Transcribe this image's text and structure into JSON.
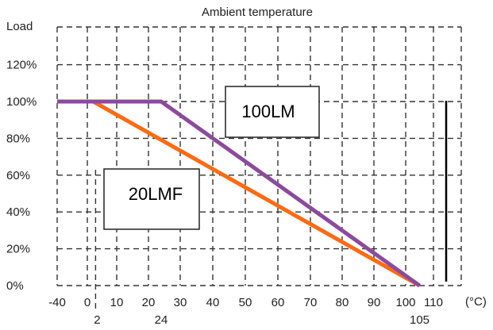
{
  "chart_data": {
    "type": "line",
    "title": "Ambient temperature",
    "ylabel": "Load",
    "xunit": "(°C)",
    "grid": true,
    "xlim": [
      -40,
      115
    ],
    "ylim": [
      0,
      140
    ],
    "x_ticks": [
      -40,
      0,
      10,
      20,
      30,
      40,
      50,
      60,
      70,
      80,
      90,
      100,
      110
    ],
    "x_tick_labels": [
      "-40",
      "0",
      "10",
      "20",
      "30",
      "40",
      "50",
      "60",
      "70",
      "80",
      "90",
      "100",
      "110"
    ],
    "y_ticks": [
      0,
      20,
      40,
      60,
      80,
      100,
      120
    ],
    "y_tick_labels": [
      "0%",
      "20%",
      "40%",
      "60%",
      "80%",
      "100%",
      "120%"
    ],
    "extra_x_labels": [
      {
        "value": 2,
        "label": "2"
      },
      {
        "value": 24,
        "label": "24"
      },
      {
        "value": 105,
        "label": "105"
      }
    ],
    "series": [
      {
        "name": "20LMF",
        "color": "#ff6a13",
        "x": [
          -40,
          2,
          105
        ],
        "y": [
          100,
          100,
          0
        ]
      },
      {
        "name": "100LM",
        "color": "#8c4a9c",
        "x": [
          -40,
          24,
          105
        ],
        "y": [
          100,
          100,
          0
        ]
      }
    ],
    "annotations": [
      {
        "text": "100LM"
      },
      {
        "text": "20LMF"
      }
    ]
  }
}
